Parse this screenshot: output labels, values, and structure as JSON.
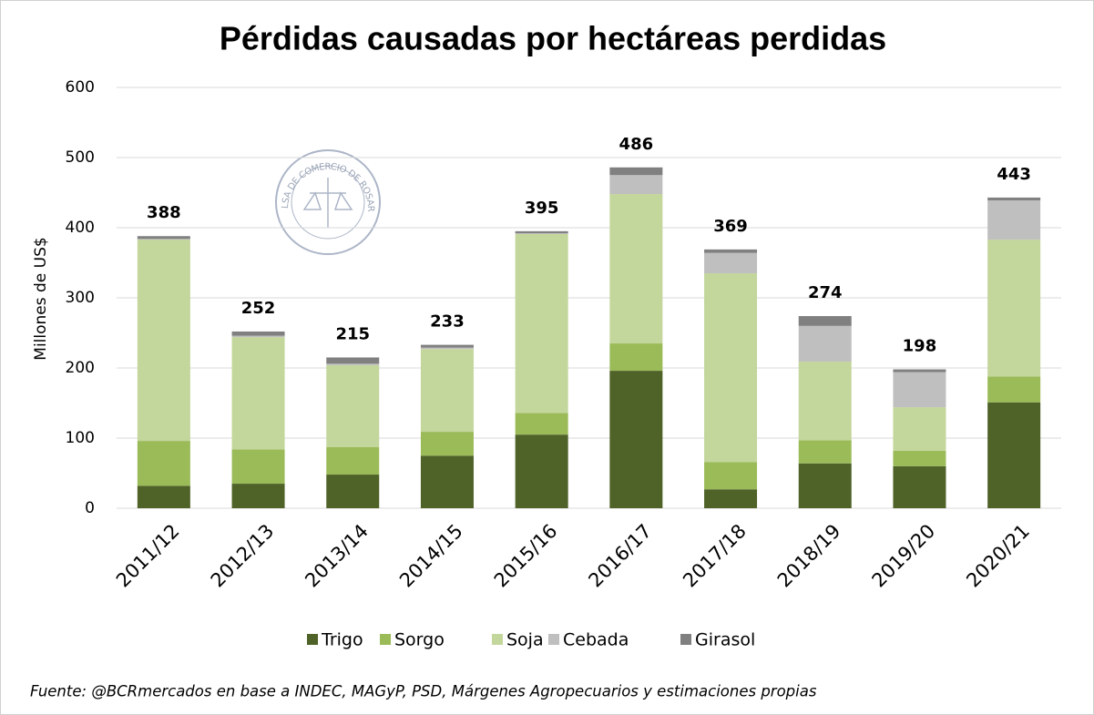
{
  "chart_data": {
    "type": "stacked_bar",
    "title": "Pérdidas causadas por hectáreas perdidas",
    "y_label": "Millones de US$",
    "categories": [
      "2011/12",
      "2012/13",
      "2013/14",
      "2014/15",
      "2015/16",
      "2016/17",
      "2017/18",
      "2018/19",
      "2019/20",
      "2020/21"
    ],
    "series": [
      {
        "name": "Trigo",
        "color": "#4f6228",
        "values": [
          32,
          35,
          48,
          75,
          105,
          196,
          27,
          64,
          60,
          151
        ]
      },
      {
        "name": "Sorgo",
        "color": "#9bbb59",
        "values": [
          64,
          49,
          39,
          34,
          31,
          39,
          39,
          33,
          22,
          37
        ]
      },
      {
        "name": "Soja",
        "color": "#c3d69b",
        "values": [
          287,
          160,
          117,
          118,
          255,
          213,
          269,
          112,
          62,
          195
        ]
      },
      {
        "name": "Cebada",
        "color": "#bfbfbf",
        "values": [
          1,
          2,
          2,
          2,
          1,
          27,
          29,
          51,
          50,
          56
        ]
      },
      {
        "name": "Girasol",
        "color": "#808080",
        "values": [
          4,
          6,
          9,
          4,
          3,
          11,
          5,
          14,
          4,
          4
        ]
      }
    ],
    "totals": [
      388,
      252,
      215,
      233,
      395,
      486,
      369,
      274,
      198,
      443
    ],
    "ylim": [
      0,
      600
    ],
    "yticks": [
      0,
      100,
      200,
      300,
      400,
      500,
      600
    ],
    "grid": true,
    "legend": "bottom",
    "source": "Fuente: @BCRmercados en base a INDEC, MAGyP, PSD, Márgenes Agropecuarios y estimaciones propias"
  },
  "logo": {
    "text": "BOLSA DE COMERCIO DE ROSARIO"
  }
}
